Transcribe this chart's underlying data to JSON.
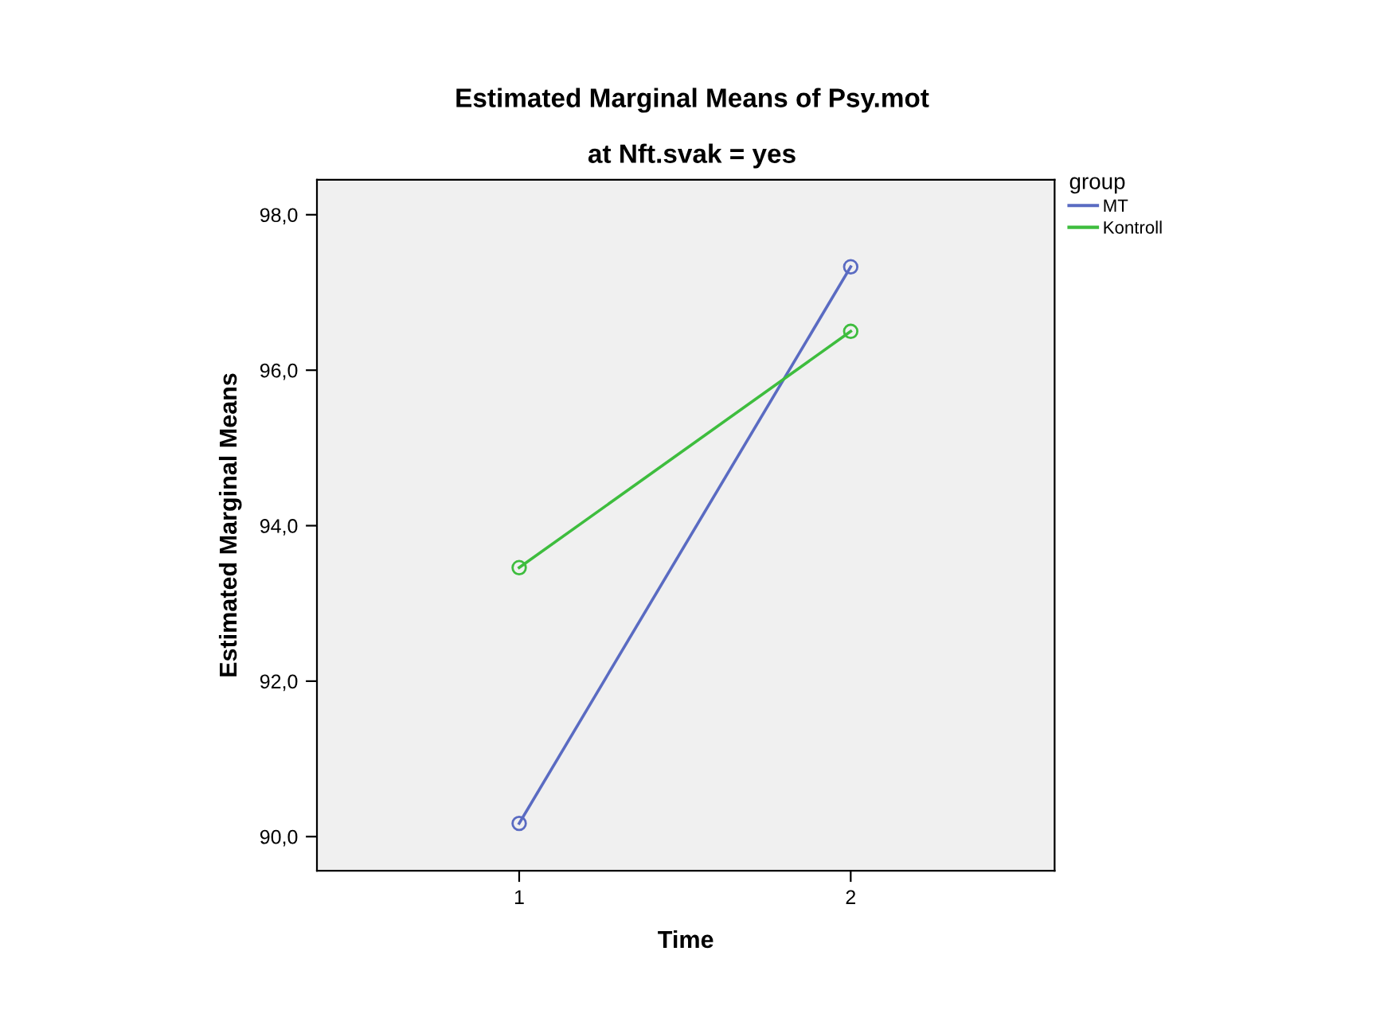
{
  "chart_data": {
    "type": "line",
    "title": "Estimated Marginal Means of Psy.mot",
    "subtitle": "at Nft.svak = yes",
    "xlabel": "Time",
    "ylabel": "Estimated Marginal Means",
    "legend_title": "group",
    "categories": [
      "1",
      "2"
    ],
    "series": [
      {
        "name": "MT",
        "color": "#5a6bc2",
        "values": [
          90.17,
          97.33
        ]
      },
      {
        "name": "Kontroll",
        "color": "#3ebd3e",
        "values": [
          93.46,
          96.5
        ]
      }
    ],
    "ylim": [
      89.56,
      98.45
    ],
    "yticks": [
      {
        "value": 90,
        "label": "90,0"
      },
      {
        "value": 92,
        "label": "92,0"
      },
      {
        "value": 94,
        "label": "94,0"
      },
      {
        "value": 96,
        "label": "96,0"
      },
      {
        "value": 98,
        "label": "98,0"
      }
    ],
    "marker": "circle",
    "line_style": "solid",
    "grid": false,
    "legend": "right"
  }
}
